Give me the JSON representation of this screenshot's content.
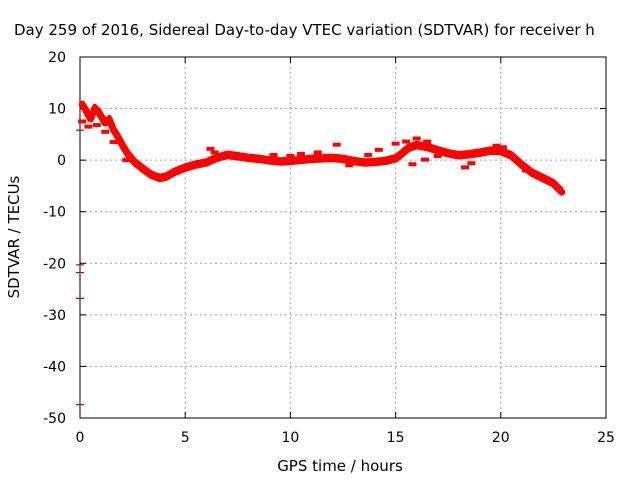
{
  "chart_data": {
    "type": "scatter",
    "title": "Day 259 of 2016, Sidereal Day-to-day VTEC variation (SDTVAR) for receiver h",
    "xlabel": "GPS time / hours",
    "ylabel": "SDTVAR / TECUs",
    "xlim": [
      0,
      25
    ],
    "ylim": [
      -50,
      20
    ],
    "xticks": [
      0,
      5,
      10,
      15,
      20,
      25
    ],
    "yticks": [
      -50,
      -40,
      -30,
      -20,
      -10,
      0,
      10,
      20
    ],
    "grid": true,
    "series": [
      {
        "color": "#ff0000",
        "points": [
          [
            0.1,
            10.8
          ],
          [
            0.3,
            9.5
          ],
          [
            0.5,
            8.0
          ],
          [
            0.7,
            10.0
          ],
          [
            0.9,
            9.2
          ],
          [
            1.0,
            8.5
          ],
          [
            1.2,
            7.2
          ],
          [
            1.4,
            7.8
          ],
          [
            1.6,
            5.8
          ],
          [
            1.8,
            4.5
          ],
          [
            2.0,
            3.0
          ],
          [
            2.3,
            1.0
          ],
          [
            2.6,
            -0.5
          ],
          [
            3.0,
            -1.8
          ],
          [
            3.4,
            -3.0
          ],
          [
            3.8,
            -3.6
          ],
          [
            4.1,
            -3.3
          ],
          [
            4.5,
            -2.4
          ],
          [
            5.0,
            -1.6
          ],
          [
            5.5,
            -1.0
          ],
          [
            6.0,
            -0.6
          ],
          [
            6.5,
            0.3
          ],
          [
            7.0,
            0.9
          ],
          [
            7.5,
            0.6
          ],
          [
            8.0,
            0.3
          ],
          [
            8.5,
            0.1
          ],
          [
            9.0,
            -0.2
          ],
          [
            9.5,
            -0.4
          ],
          [
            10.0,
            -0.3
          ],
          [
            10.5,
            -0.1
          ],
          [
            11.0,
            0.1
          ],
          [
            11.5,
            0.2
          ],
          [
            12.0,
            0.3
          ],
          [
            12.5,
            0.1
          ],
          [
            13.0,
            -0.3
          ],
          [
            13.5,
            -0.6
          ],
          [
            14.0,
            -0.5
          ],
          [
            14.5,
            -0.3
          ],
          [
            15.0,
            0.2
          ],
          [
            15.3,
            1.2
          ],
          [
            15.6,
            2.2
          ],
          [
            16.0,
            2.8
          ],
          [
            16.5,
            2.4
          ],
          [
            17.0,
            1.8
          ],
          [
            17.5,
            1.2
          ],
          [
            18.0,
            0.8
          ],
          [
            18.5,
            1.0
          ],
          [
            19.0,
            1.3
          ],
          [
            19.5,
            1.7
          ],
          [
            20.0,
            1.6
          ],
          [
            20.5,
            0.8
          ],
          [
            21.0,
            -1.0
          ],
          [
            21.5,
            -2.6
          ],
          [
            22.0,
            -3.6
          ],
          [
            22.5,
            -4.6
          ],
          [
            22.9,
            -6.2
          ]
        ],
        "band_points": [
          [
            0.1,
            7.5
          ],
          [
            0.4,
            6.5
          ],
          [
            0.8,
            6.8
          ],
          [
            1.2,
            5.5
          ],
          [
            1.6,
            3.5
          ],
          [
            2.2,
            0.0
          ],
          [
            6.2,
            2.2
          ],
          [
            6.4,
            1.5
          ],
          [
            9.2,
            1.0
          ],
          [
            10.0,
            0.8
          ],
          [
            10.5,
            1.2
          ],
          [
            11.3,
            1.5
          ],
          [
            12.2,
            3.0
          ],
          [
            12.8,
            -1.0
          ],
          [
            13.7,
            1.0
          ],
          [
            14.2,
            2.0
          ],
          [
            15.0,
            3.2
          ],
          [
            15.5,
            3.6
          ],
          [
            16.0,
            4.2
          ],
          [
            16.5,
            3.6
          ],
          [
            15.8,
            -0.8
          ],
          [
            16.4,
            0.1
          ],
          [
            17.0,
            0.8
          ],
          [
            17.6,
            1.5
          ],
          [
            18.3,
            -1.4
          ],
          [
            18.6,
            -0.6
          ],
          [
            19.2,
            1.8
          ],
          [
            19.8,
            2.8
          ],
          [
            20.1,
            2.5
          ],
          [
            21.2,
            -2.0
          ],
          [
            21.8,
            -3.0
          ],
          [
            22.2,
            -4.0
          ]
        ]
      }
    ],
    "edge_markers_y": [
      5.8,
      -20.3,
      -21.8,
      -26.8,
      -47.4
    ]
  }
}
